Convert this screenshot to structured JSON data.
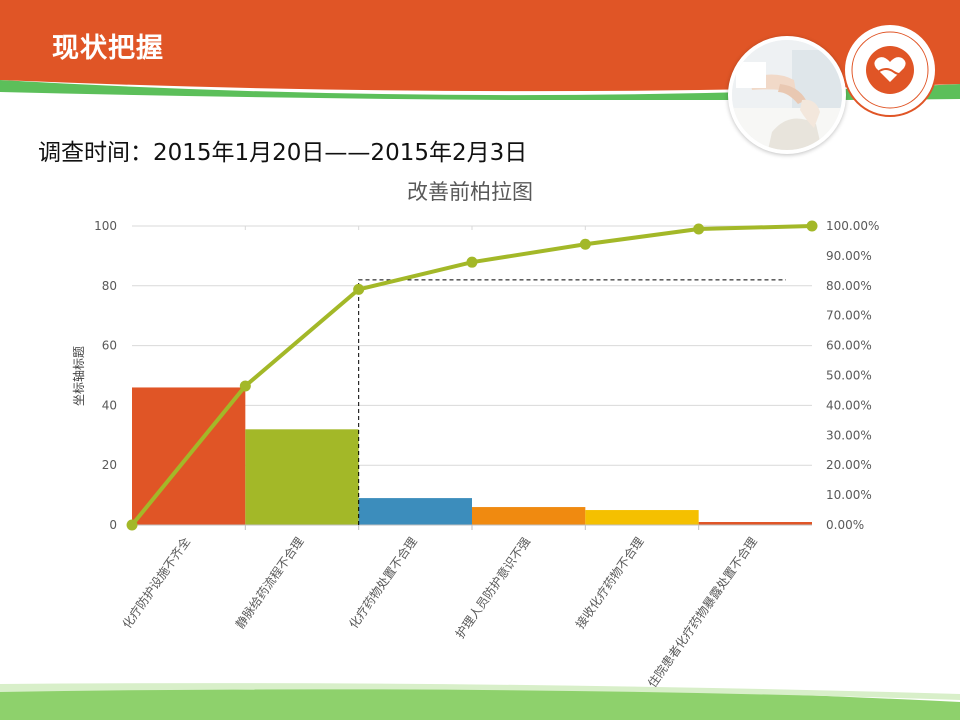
{
  "header": {
    "title": "现状把握",
    "band_color": "#E05526",
    "accent_green": "#5CBF5A"
  },
  "survey": {
    "label": "调查时间：2015年1月20日——2015年2月3日"
  },
  "images": {
    "photo": "nurse-patient-photo",
    "logo": "hand-in-hand-heart-logo"
  },
  "chart_data": {
    "type": "bar",
    "title": "改善前柏拉图",
    "ylabel": "坐标轴标题",
    "ylim": [
      0,
      100
    ],
    "y_ticks": [
      0,
      20,
      40,
      60,
      80,
      100
    ],
    "y2lim": [
      0,
      100
    ],
    "y2_ticks": [
      "0.00%",
      "10.00%",
      "20.00%",
      "30.00%",
      "40.00%",
      "50.00%",
      "60.00%",
      "70.00%",
      "80.00%",
      "90.00%",
      "100.00%"
    ],
    "categories": [
      "化疗防护设施不齐全",
      "静脉给药流程不合理",
      "化疗药物处置不合理",
      "护理人员防护意识不强",
      "接收化疗药物不合理",
      "住院患者化疗药物暴露处置不合理"
    ],
    "values": [
      46,
      32,
      9,
      6,
      5,
      1
    ],
    "bar_colors": [
      "#E05526",
      "#A3B828",
      "#3C8DBC",
      "#F08A10",
      "#F5C000",
      "#E05526"
    ],
    "cumulative": [
      0,
      46.5,
      78.8,
      87.9,
      93.9,
      99.0,
      100.0
    ],
    "line_color": "#A3B828",
    "reference_line": 82,
    "gridlines": true,
    "legend": "none"
  }
}
